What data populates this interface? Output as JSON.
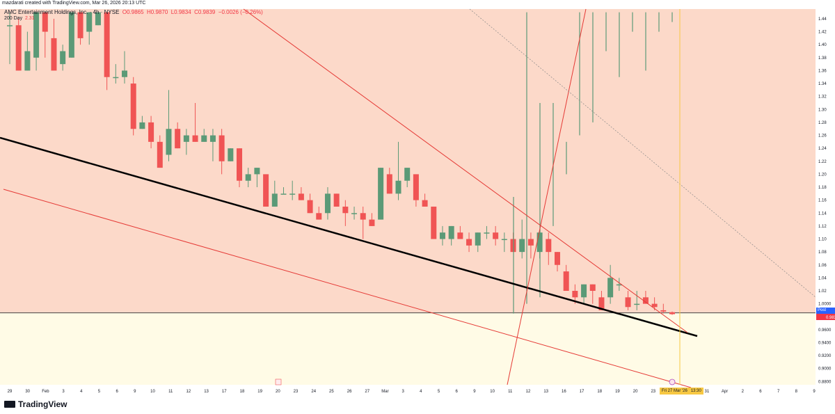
{
  "header": {
    "created_by": "mazdarati created with TradingView.com, Mar 26, 2026 20:13 UTC"
  },
  "legend": {
    "symbol": "AMC Entertainment Holdings, Inc. · 4h · NYSE",
    "ohlc_open": "O0.9865",
    "ohlc_high": "H0.9870",
    "ohlc_low": "L0.9834",
    "ohlc_close": "C0.9839",
    "change": "−0.0026 (−0.26%)",
    "ma_label": "200 Day",
    "ma_value": "2.31"
  },
  "price_tags": {
    "post_label": "Post",
    "post_value": "0.9850",
    "last_value": "0.9839",
    "date_cursor": "Fri 27 Mar '26",
    "time_cursor": "13:30"
  },
  "branding": {
    "logo_text": "TradingView",
    "logo_icon": "tradingview-logo-icon"
  },
  "colors": {
    "up": "#5b9a77",
    "down": "#f05454",
    "zone_upper": "#fcd9c9",
    "zone_lower": "#fffbe6"
  },
  "chart_data": {
    "type": "candlestick",
    "y_axis": {
      "position": "right",
      "ylim": [
        0.875,
        1.455
      ],
      "ticks": [
        "1.44",
        "1.42",
        "1.40",
        "1.38",
        "1.36",
        "1.34",
        "1.32",
        "1.30",
        "1.28",
        "1.26",
        "1.24",
        "1.22",
        "1.20",
        "1.18",
        "1.16",
        "1.14",
        "1.12",
        "1.10",
        "1.08",
        "1.06",
        "1.04",
        "1.02",
        "1.0000",
        "0.9600",
        "0.9400",
        "0.9200",
        "0.9000",
        "0.8800"
      ]
    },
    "x_labels": [
      "29",
      "30",
      "Feb",
      "3",
      "4",
      "5",
      "6",
      "9",
      "10",
      "11",
      "12",
      "13",
      "17",
      "18",
      "19",
      "20",
      "23",
      "24",
      "25",
      "26",
      "27",
      "Mar",
      "3",
      "4",
      "5",
      "6",
      "9",
      "10",
      "11",
      "12",
      "13",
      "16",
      "17",
      "18",
      "19",
      "20",
      "23",
      "24",
      "25",
      "31",
      "Apr",
      "2",
      "6",
      "7",
      "8",
      "9"
    ],
    "candles": [
      {
        "o": 1.43,
        "h": 1.45,
        "l": 1.37,
        "c": 1.43
      },
      {
        "o": 1.43,
        "h": 1.44,
        "l": 1.36,
        "c": 1.36
      },
      {
        "o": 1.36,
        "h": 1.42,
        "l": 1.36,
        "c": 1.39
      },
      {
        "o": 1.38,
        "h": 1.45,
        "l": 1.36,
        "c": 1.45
      },
      {
        "o": 1.45,
        "h": 1.45,
        "l": 1.38,
        "c": 1.42
      },
      {
        "o": 1.41,
        "h": 1.44,
        "l": 1.36,
        "c": 1.36
      },
      {
        "o": 1.37,
        "h": 1.4,
        "l": 1.36,
        "c": 1.39
      },
      {
        "o": 1.38,
        "h": 1.45,
        "l": 1.38,
        "c": 1.45
      },
      {
        "o": 1.45,
        "h": 1.45,
        "l": 1.4,
        "c": 1.41
      },
      {
        "o": 1.42,
        "h": 1.45,
        "l": 1.4,
        "c": 1.45
      },
      {
        "o": 1.43,
        "h": 1.45,
        "l": 1.43,
        "c": 1.45
      },
      {
        "o": 1.45,
        "h": 1.45,
        "l": 1.33,
        "c": 1.35
      },
      {
        "o": 1.35,
        "h": 1.37,
        "l": 1.34,
        "c": 1.35
      },
      {
        "o": 1.35,
        "h": 1.39,
        "l": 1.34,
        "c": 1.36
      },
      {
        "o": 1.34,
        "h": 1.35,
        "l": 1.26,
        "c": 1.27
      },
      {
        "o": 1.27,
        "h": 1.29,
        "l": 1.27,
        "c": 1.28
      },
      {
        "o": 1.28,
        "h": 1.29,
        "l": 1.24,
        "c": 1.25
      },
      {
        "o": 1.25,
        "h": 1.26,
        "l": 1.21,
        "c": 1.21
      },
      {
        "o": 1.23,
        "h": 1.33,
        "l": 1.22,
        "c": 1.27
      },
      {
        "o": 1.27,
        "h": 1.28,
        "l": 1.24,
        "c": 1.24
      },
      {
        "o": 1.25,
        "h": 1.27,
        "l": 1.23,
        "c": 1.26
      },
      {
        "o": 1.26,
        "h": 1.31,
        "l": 1.25,
        "c": 1.25
      },
      {
        "o": 1.25,
        "h": 1.27,
        "l": 1.25,
        "c": 1.26
      },
      {
        "o": 1.25,
        "h": 1.27,
        "l": 1.22,
        "c": 1.26
      },
      {
        "o": 1.26,
        "h": 1.27,
        "l": 1.2,
        "c": 1.22
      },
      {
        "o": 1.22,
        "h": 1.24,
        "l": 1.22,
        "c": 1.24
      },
      {
        "o": 1.24,
        "h": 1.24,
        "l": 1.18,
        "c": 1.19
      },
      {
        "o": 1.19,
        "h": 1.21,
        "l": 1.18,
        "c": 1.2
      },
      {
        "o": 1.2,
        "h": 1.21,
        "l": 1.18,
        "c": 1.21
      },
      {
        "o": 1.2,
        "h": 1.2,
        "l": 1.15,
        "c": 1.15
      },
      {
        "o": 1.15,
        "h": 1.19,
        "l": 1.15,
        "c": 1.17
      },
      {
        "o": 1.17,
        "h": 1.18,
        "l": 1.17,
        "c": 1.17
      },
      {
        "o": 1.17,
        "h": 1.19,
        "l": 1.16,
        "c": 1.17
      },
      {
        "o": 1.17,
        "h": 1.18,
        "l": 1.16,
        "c": 1.16
      },
      {
        "o": 1.16,
        "h": 1.17,
        "l": 1.14,
        "c": 1.14
      },
      {
        "o": 1.14,
        "h": 1.15,
        "l": 1.13,
        "c": 1.13
      },
      {
        "o": 1.14,
        "h": 1.18,
        "l": 1.13,
        "c": 1.17
      },
      {
        "o": 1.17,
        "h": 1.17,
        "l": 1.15,
        "c": 1.15
      },
      {
        "o": 1.15,
        "h": 1.16,
        "l": 1.12,
        "c": 1.14
      },
      {
        "o": 1.14,
        "h": 1.15,
        "l": 1.13,
        "c": 1.14
      },
      {
        "o": 1.14,
        "h": 1.15,
        "l": 1.1,
        "c": 1.13
      },
      {
        "o": 1.13,
        "h": 1.14,
        "l": 1.12,
        "c": 1.12
      },
      {
        "o": 1.13,
        "h": 1.21,
        "l": 1.13,
        "c": 1.21
      },
      {
        "o": 1.2,
        "h": 1.21,
        "l": 1.17,
        "c": 1.17
      },
      {
        "o": 1.17,
        "h": 1.25,
        "l": 1.16,
        "c": 1.19
      },
      {
        "o": 1.19,
        "h": 1.21,
        "l": 1.18,
        "c": 1.21
      },
      {
        "o": 1.2,
        "h": 1.2,
        "l": 1.15,
        "c": 1.16
      },
      {
        "o": 1.16,
        "h": 1.17,
        "l": 1.15,
        "c": 1.15
      },
      {
        "o": 1.15,
        "h": 1.15,
        "l": 1.1,
        "c": 1.1
      },
      {
        "o": 1.1,
        "h": 1.12,
        "l": 1.09,
        "c": 1.11
      },
      {
        "o": 1.1,
        "h": 1.12,
        "l": 1.09,
        "c": 1.12
      },
      {
        "o": 1.11,
        "h": 1.12,
        "l": 1.1,
        "c": 1.1
      },
      {
        "o": 1.1,
        "h": 1.11,
        "l": 1.08,
        "c": 1.09
      },
      {
        "o": 1.09,
        "h": 1.11,
        "l": 1.08,
        "c": 1.11
      },
      {
        "o": 1.11,
        "h": 1.12,
        "l": 1.1,
        "c": 1.11
      },
      {
        "o": 1.11,
        "h": 1.12,
        "l": 1.09,
        "c": 1.1
      },
      {
        "o": 1.1,
        "h": 1.11,
        "l": 1.08,
        "c": 1.1
      },
      {
        "o": 1.1,
        "h": 1.11,
        "l": 1.08,
        "c": 1.08
      },
      {
        "o": 1.08,
        "h": 1.13,
        "l": 1.07,
        "c": 1.1
      },
      {
        "o": 1.1,
        "h": 1.11,
        "l": 1.07,
        "c": 1.09
      },
      {
        "o": 1.08,
        "h": 1.11,
        "l": 1.07,
        "c": 1.11
      },
      {
        "o": 1.1,
        "h": 1.11,
        "l": 1.06,
        "c": 1.08
      },
      {
        "o": 1.08,
        "h": 1.08,
        "l": 1.05,
        "c": 1.06
      },
      {
        "o": 1.05,
        "h": 1.06,
        "l": 1.02,
        "c": 1.02
      },
      {
        "o": 1.02,
        "h": 1.03,
        "l": 1.0,
        "c": 1.01
      },
      {
        "o": 1.01,
        "h": 1.03,
        "l": 1.0,
        "c": 1.03
      },
      {
        "o": 1.03,
        "h": 1.03,
        "l": 1.0,
        "c": 1.02
      },
      {
        "o": 1.01,
        "h": 1.02,
        "l": 0.99,
        "c": 0.99
      },
      {
        "o": 1.01,
        "h": 1.06,
        "l": 1.0,
        "c": 1.04
      },
      {
        "o": 1.03,
        "h": 1.04,
        "l": 1.02,
        "c": 1.03
      },
      {
        "o": 1.01,
        "h": 1.02,
        "l": 0.99,
        "c": 0.995
      },
      {
        "o": 1.0,
        "h": 1.02,
        "l": 0.99,
        "c": 1.0
      },
      {
        "o": 1.01,
        "h": 1.02,
        "l": 1.0,
        "c": 1.0
      },
      {
        "o": 1.0,
        "h": 1.01,
        "l": 0.99,
        "c": 0.995
      },
      {
        "o": 0.99,
        "h": 1.0,
        "l": 0.985,
        "c": 0.988
      },
      {
        "o": 0.987,
        "h": 0.988,
        "l": 0.983,
        "c": 0.984
      }
    ],
    "overlay_wicks": [
      {
        "y1": 0.985,
        "y2": 1.165
      },
      {
        "y1": 1.0,
        "y2": 1.45
      },
      {
        "y1": 1.01,
        "y2": 1.31
      },
      {
        "y1": 1.12,
        "y2": 1.31
      },
      {
        "y1": 1.2,
        "y2": 1.25
      },
      {
        "y1": 1.26,
        "y2": 1.45
      },
      {
        "y1": 1.28,
        "y2": 1.45
      },
      {
        "y1": 1.39,
        "y2": 1.45
      },
      {
        "y1": 1.35,
        "y2": 1.45
      },
      {
        "y1": 1.42,
        "y2": 1.45
      },
      {
        "y1": 1.36,
        "y2": 1.45
      },
      {
        "y1": 1.42,
        "y2": 1.45
      },
      {
        "y1": 1.435,
        "y2": 1.45
      }
    ],
    "zones": [
      {
        "name": "upper",
        "from": 0.986,
        "to": 1.455
      },
      {
        "name": "lower",
        "from": 0.875,
        "to": 0.986
      }
    ]
  }
}
